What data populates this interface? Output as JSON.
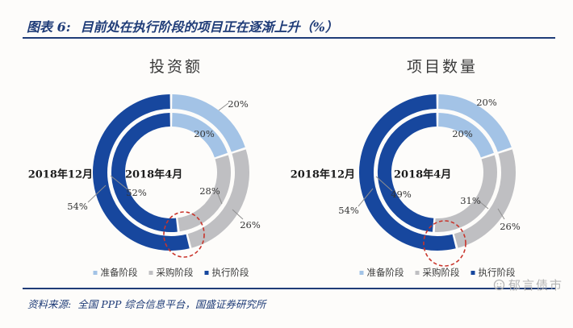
{
  "header": {
    "figure_label": "图表 6:",
    "title": "目前处在执行阶段的项目正在逐渐上升（%）"
  },
  "footer": {
    "source_label": "资料来源:",
    "source_text": "全国 PPP 综合信息平台，国盛证券研究所"
  },
  "watermark": {
    "icon": "smiley-face-icon",
    "text": "郁言债市"
  },
  "colors": {
    "accent_navy": "#1F3C78",
    "ring_dark_blue": "#17479E",
    "ring_light_blue": "#A3C3E6",
    "ring_gray": "#BFBFC2",
    "annotation_red": "#C9342B",
    "label_gray": "#3A3A3A",
    "watermark_gray": "#B5B5B5"
  },
  "chart_data": [
    {
      "type": "donut",
      "title": "投资额",
      "unit": "%",
      "categories": [
        "准备阶段",
        "采购阶段",
        "执行阶段"
      ],
      "colors": [
        "#A3C3E6",
        "#BFBFC2",
        "#17479E"
      ],
      "rings": [
        {
          "name": "2018年12月",
          "position": "outer",
          "values": [
            20,
            26,
            54
          ]
        },
        {
          "name": "2018年4月",
          "position": "inner",
          "values": [
            20,
            28,
            52
          ]
        }
      ],
      "legend_position": "bottom",
      "annotation": "red dashed circle highlighting boundary of execution-stage segments"
    },
    {
      "type": "donut",
      "title": "项目数量",
      "unit": "%",
      "categories": [
        "准备阶段",
        "采购阶段",
        "执行阶段"
      ],
      "colors": [
        "#A3C3E6",
        "#BFBFC2",
        "#17479E"
      ],
      "rings": [
        {
          "name": "2018年12月",
          "position": "outer",
          "values": [
            20,
            26,
            54
          ]
        },
        {
          "name": "2018年4月",
          "position": "inner",
          "values": [
            20,
            31,
            49
          ]
        }
      ],
      "legend_position": "bottom",
      "annotation": "red dashed circle highlighting boundary of execution-stage segments"
    }
  ]
}
